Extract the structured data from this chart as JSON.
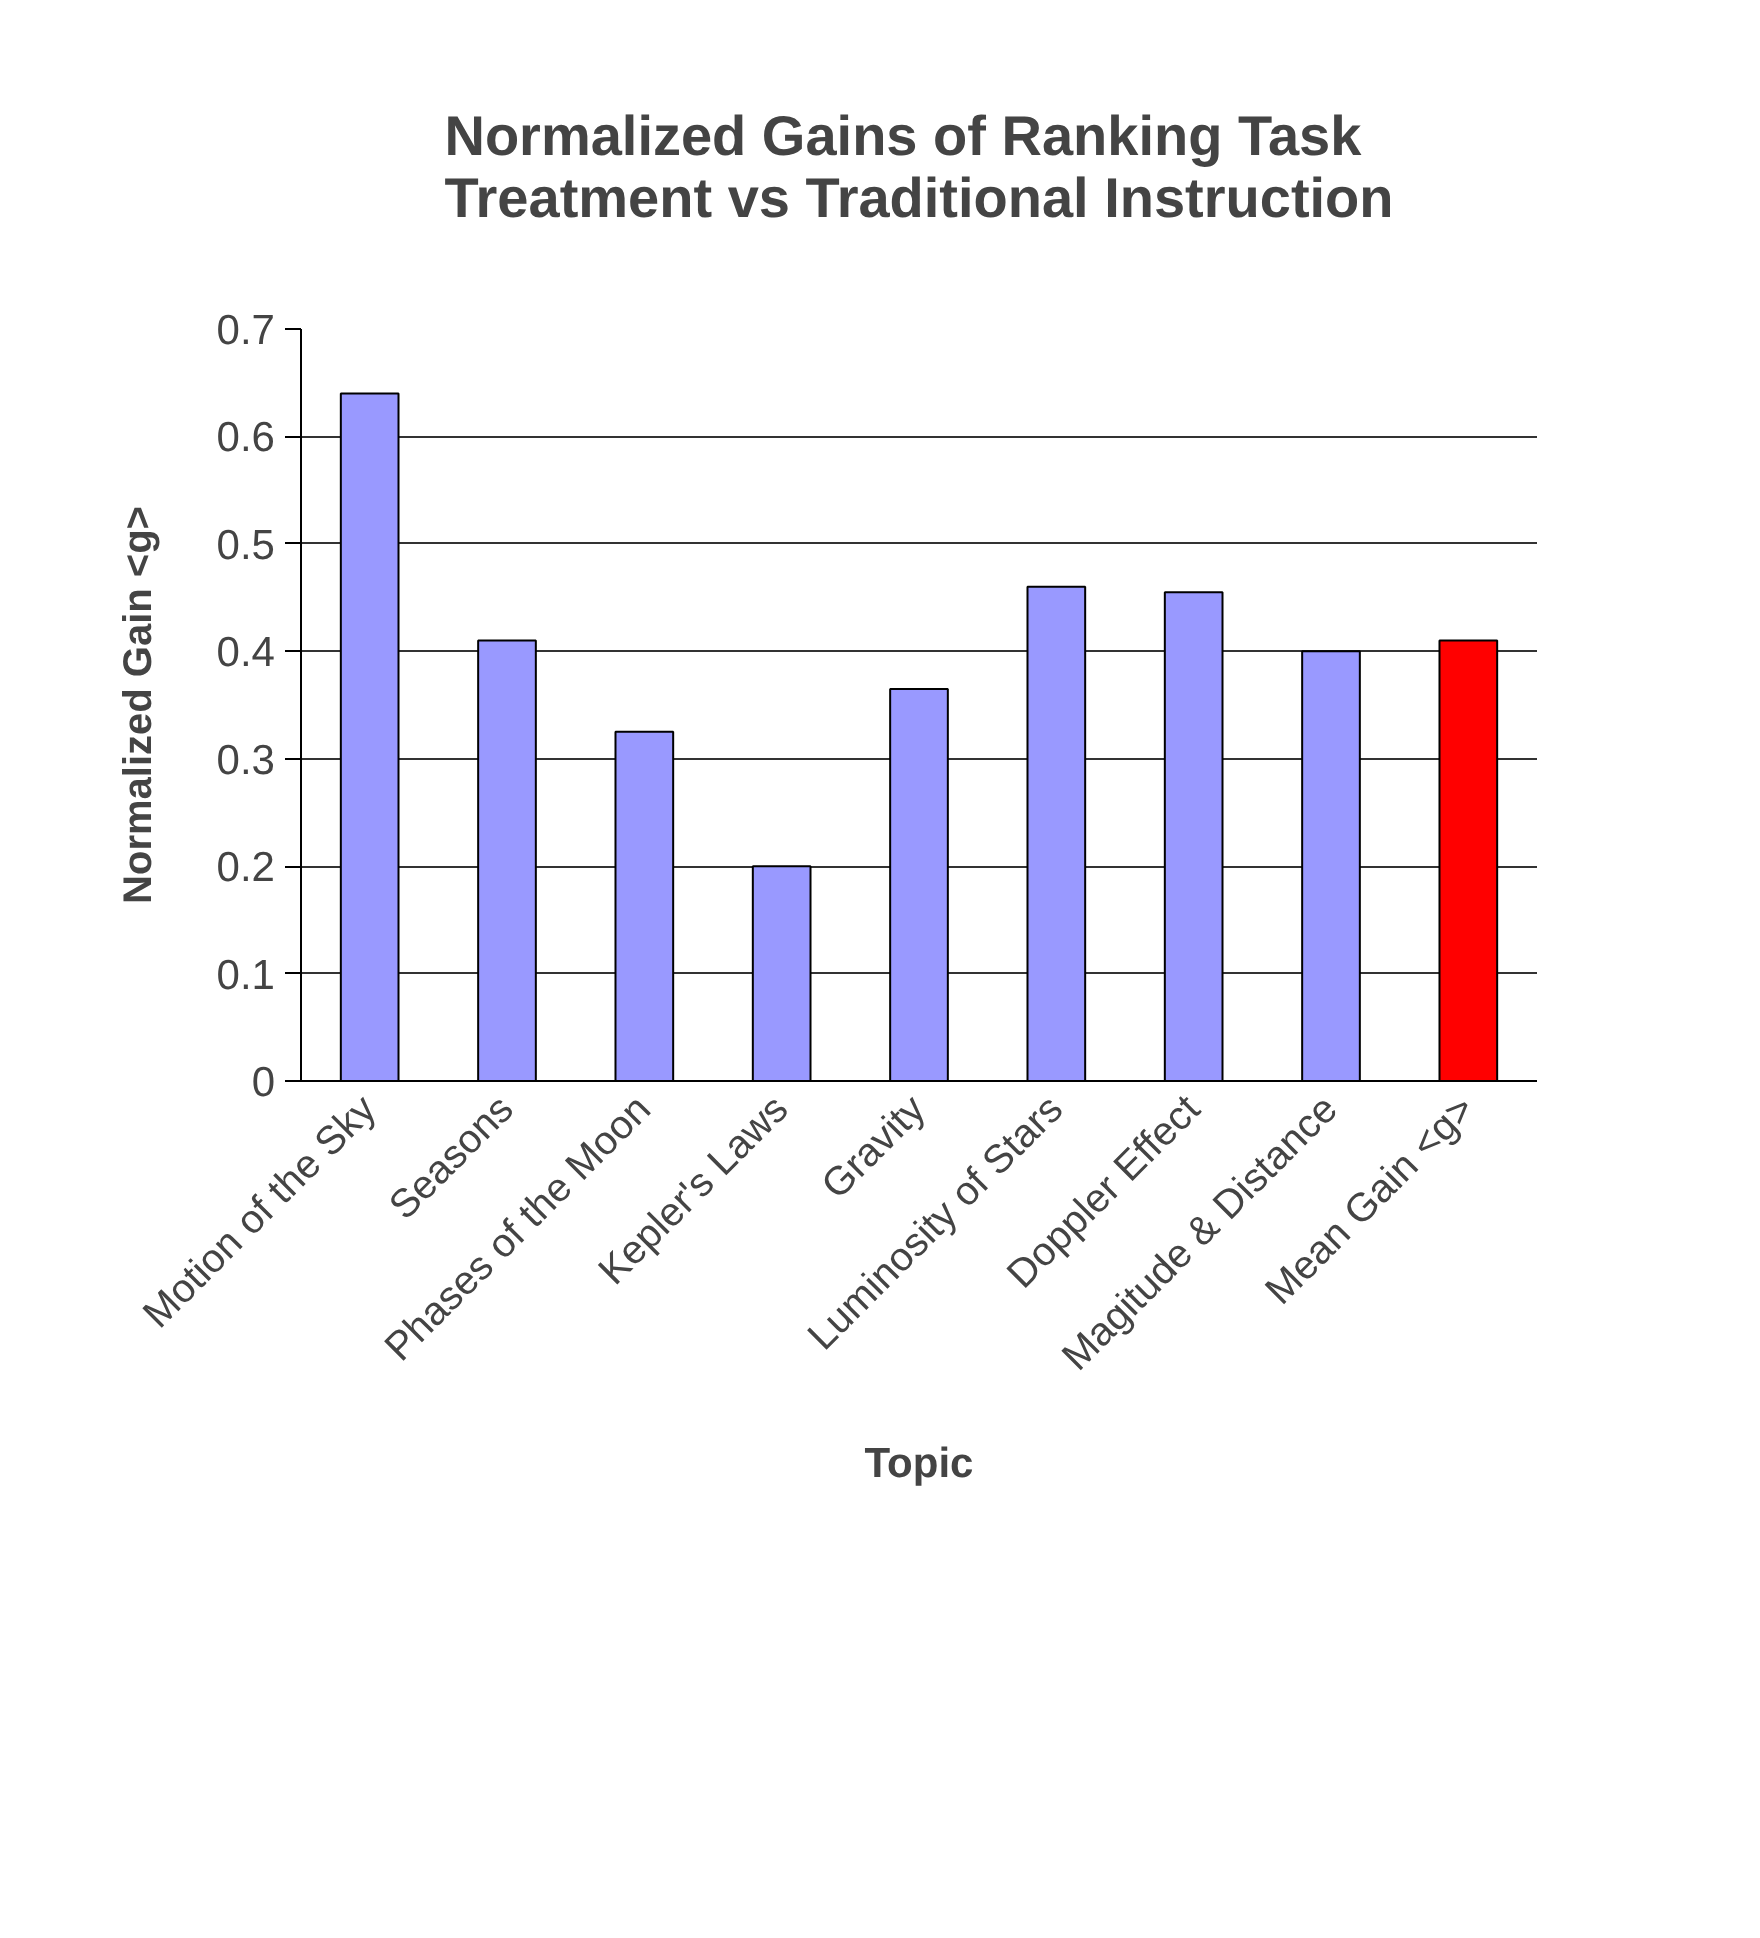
{
  "chart_data": {
    "type": "bar",
    "title": "Normalized Gains of Ranking Task\nTreatment vs Traditional Instruction",
    "xlabel": "Topic",
    "ylabel": "Normalized Gain <g>",
    "categories": [
      "Motion of the Sky",
      "Seasons",
      "Phases of the Moon",
      "Kepler's Laws",
      "Gravity",
      "Luminosity of Stars",
      "Doppler Effect",
      "Magitude & Distance",
      "Mean Gain <g>"
    ],
    "values": [
      0.64,
      0.41,
      0.325,
      0.2,
      0.365,
      0.46,
      0.455,
      0.4,
      0.41
    ],
    "colors": [
      "#9999ff",
      "#9999ff",
      "#9999ff",
      "#9999ff",
      "#9999ff",
      "#9999ff",
      "#9999ff",
      "#9999ff",
      "#ff0000"
    ],
    "ylim": [
      0,
      0.7
    ],
    "yticks": [
      0,
      0.1,
      0.2,
      0.3,
      0.4,
      0.5,
      0.6,
      0.7
    ],
    "grid": "y"
  }
}
